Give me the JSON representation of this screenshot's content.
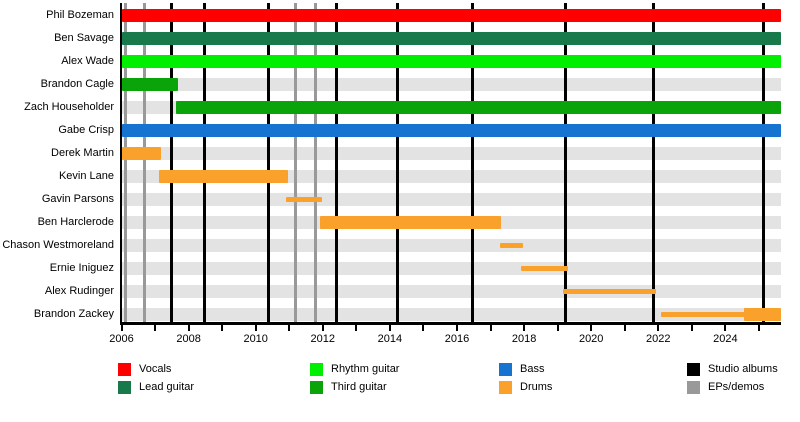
{
  "chart_data": {
    "type": "bar",
    "variant": "band-member-timeline-gantt",
    "title": "",
    "x_axis": {
      "start": 2006,
      "end": 2025.65,
      "tick_interval": 1,
      "labeled_years": [
        "2006",
        "2008",
        "2010",
        "2012",
        "2014",
        "2016",
        "2018",
        "2020",
        "2022",
        "2024"
      ]
    },
    "rows": [
      {
        "name": "Phil Bozeman",
        "role": "Vocals",
        "segments": [
          {
            "from": 2006.0,
            "to": 2025.65,
            "color_key": "vocals",
            "thin": false
          }
        ]
      },
      {
        "name": "Ben Savage",
        "role": "Lead guitar",
        "segments": [
          {
            "from": 2006.0,
            "to": 2025.65,
            "color_key": "lead_guitar",
            "thin": false
          }
        ]
      },
      {
        "name": "Alex Wade",
        "role": "Rhythm guitar",
        "segments": [
          {
            "from": 2006.0,
            "to": 2025.65,
            "color_key": "rhythm_guitar",
            "thin": false
          }
        ]
      },
      {
        "name": "Brandon Cagle",
        "role": "Third guitar",
        "segments": [
          {
            "from": 2006.0,
            "to": 2007.68,
            "color_key": "third_guitar",
            "thin": false
          }
        ]
      },
      {
        "name": "Zach Householder",
        "role": "Third guitar",
        "segments": [
          {
            "from": 2007.62,
            "to": 2025.65,
            "color_key": "third_guitar",
            "thin": false
          }
        ]
      },
      {
        "name": "Gabe Crisp",
        "role": "Bass",
        "segments": [
          {
            "from": 2006.0,
            "to": 2025.65,
            "color_key": "bass",
            "thin": false
          }
        ]
      },
      {
        "name": "Derek Martin",
        "role": "Drums",
        "segments": [
          {
            "from": 2006.0,
            "to": 2007.18,
            "color_key": "drums",
            "thin": false
          }
        ]
      },
      {
        "name": "Kevin Lane",
        "role": "Drums",
        "segments": [
          {
            "from": 2007.12,
            "to": 2010.96,
            "color_key": "drums",
            "thin": false
          }
        ]
      },
      {
        "name": "Gavin Parsons",
        "role": "Drums",
        "segments": [
          {
            "from": 2010.9,
            "to": 2011.98,
            "color_key": "drums",
            "thin": true
          }
        ]
      },
      {
        "name": "Ben Harclerode",
        "role": "Drums",
        "segments": [
          {
            "from": 2011.92,
            "to": 2017.31,
            "color_key": "drums",
            "thin": false
          }
        ]
      },
      {
        "name": "Chason Westmoreland",
        "role": "Drums",
        "segments": [
          {
            "from": 2017.28,
            "to": 2017.97,
            "color_key": "drums",
            "thin": true
          }
        ]
      },
      {
        "name": "Ernie Iniguez",
        "role": "Drums",
        "segments": [
          {
            "from": 2017.91,
            "to": 2019.31,
            "color_key": "drums",
            "thin": true
          }
        ]
      },
      {
        "name": "Alex Rudinger",
        "role": "Drums",
        "segments": [
          {
            "from": 2019.16,
            "to": 2021.93,
            "color_key": "drums",
            "thin": true
          }
        ]
      },
      {
        "name": "Brandon Zackey",
        "role": "Drums",
        "segments": [
          {
            "from": 2022.08,
            "to": 2024.62,
            "color_key": "drums",
            "thin": true
          },
          {
            "from": 2024.56,
            "to": 2025.65,
            "color_key": "drums",
            "thin": false
          }
        ]
      }
    ],
    "event_lines": {
      "studio_albums": [
        2007.5,
        2008.48,
        2010.37,
        2012.42,
        2014.23,
        2016.45,
        2019.22,
        2021.85,
        2025.15
      ],
      "eps_demos": [
        2006.13,
        2006.7,
        2011.2,
        2011.77
      ]
    },
    "legend": [
      {
        "label": "Vocals",
        "color_key": "vocals"
      },
      {
        "label": "Lead guitar",
        "color_key": "lead_guitar"
      },
      {
        "label": "Rhythm guitar",
        "color_key": "rhythm_guitar"
      },
      {
        "label": "Third guitar",
        "color_key": "third_guitar"
      },
      {
        "label": "Bass",
        "color_key": "bass"
      },
      {
        "label": "Drums",
        "color_key": "drums"
      },
      {
        "label": "Studio albums",
        "color_key": "studio_albums"
      },
      {
        "label": "EPs/demos",
        "color_key": "eps_demos"
      }
    ],
    "colors": {
      "vocals": "#fd0000",
      "lead_guitar": "#18794a",
      "rhythm_guitar": "#00ee00",
      "third_guitar": "#0aa30a",
      "bass": "#1673cf",
      "drums": "#faa12c",
      "studio_albums": "#000000",
      "eps_demos": "#999999",
      "row_band": "#e3e3e3"
    }
  }
}
